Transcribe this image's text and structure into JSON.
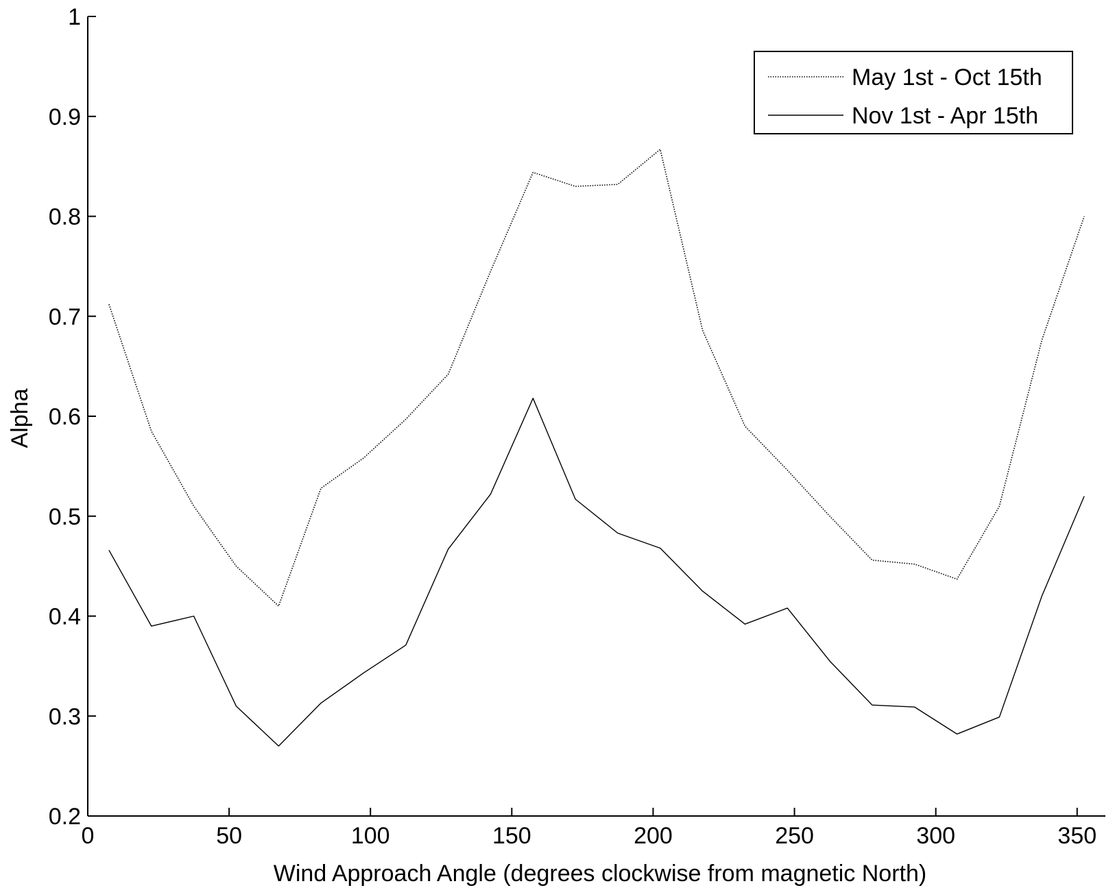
{
  "chart_data": {
    "type": "line",
    "title": "",
    "xlabel": "Wind Approach Angle (degrees clockwise from magnetic North)",
    "ylabel": "Alpha",
    "xlim": [
      0,
      360
    ],
    "ylim": [
      0.2,
      1.0
    ],
    "xticks": [
      0,
      50,
      100,
      150,
      200,
      250,
      300,
      350
    ],
    "yticks": [
      0.2,
      0.3,
      0.4,
      0.5,
      0.6,
      0.7,
      0.8,
      0.9,
      1.0
    ],
    "xtick_labels": [
      "0",
      "50",
      "100",
      "150",
      "200",
      "250",
      "300",
      "350"
    ],
    "ytick_labels": [
      "0.2",
      "0.3",
      "0.4",
      "0.5",
      "0.6",
      "0.7",
      "0.8",
      "0.9",
      "1"
    ],
    "grid": false,
    "legend_position": "top-right",
    "x": [
      7.5,
      22.5,
      37.5,
      52.5,
      67.5,
      82.5,
      97.5,
      112.5,
      127.5,
      142.5,
      157.5,
      172.5,
      187.5,
      202.5,
      217.5,
      232.5,
      247.5,
      262.5,
      277.5,
      292.5,
      307.5,
      322.5,
      337.5,
      352.5
    ],
    "series": [
      {
        "name": "May 1st - Oct 15th",
        "style": "dotted",
        "color": "#000000",
        "values": [
          0.712,
          0.585,
          0.51,
          0.45,
          0.41,
          0.528,
          0.558,
          0.597,
          0.642,
          0.745,
          0.844,
          0.83,
          0.832,
          0.867,
          0.686,
          0.59,
          0.546,
          0.5,
          0.456,
          0.452,
          0.437,
          0.51,
          0.676,
          0.8
        ]
      },
      {
        "name": "Nov 1st - Apr 15th",
        "style": "solid",
        "color": "#000000",
        "values": [
          0.466,
          0.39,
          0.4,
          0.31,
          0.27,
          0.313,
          0.343,
          0.371,
          0.467,
          0.522,
          0.618,
          0.517,
          0.483,
          0.468,
          0.425,
          0.392,
          0.408,
          0.355,
          0.311,
          0.309,
          0.282,
          0.299,
          0.42,
          0.52
        ]
      }
    ]
  }
}
